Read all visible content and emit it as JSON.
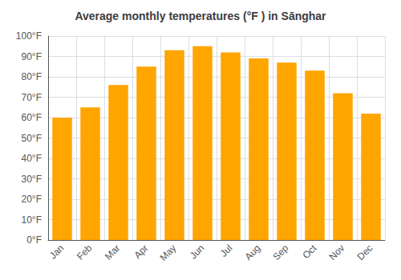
{
  "chart_data": {
    "type": "bar",
    "title": "Average monthly temperatures (°F ) in Sānghar",
    "categories": [
      "Jan",
      "Feb",
      "Mar",
      "Apr",
      "May",
      "Jun",
      "Jul",
      "Aug",
      "Sep",
      "Oct",
      "Nov",
      "Dec"
    ],
    "values": [
      60,
      65,
      76,
      85,
      93,
      95,
      92,
      89,
      87,
      83,
      72,
      62
    ],
    "color": "#FFA500",
    "ylim": [
      0,
      100
    ],
    "yticks": [
      {
        "value": 0,
        "label": "0°F"
      },
      {
        "value": 10,
        "label": "10°F"
      },
      {
        "value": 20,
        "label": "20°F"
      },
      {
        "value": 30,
        "label": "30°F"
      },
      {
        "value": 40,
        "label": "40°F"
      },
      {
        "value": 50,
        "label": "50°F"
      },
      {
        "value": 60,
        "label": "60°F"
      },
      {
        "value": 70,
        "label": "70°F"
      },
      {
        "value": 80,
        "label": "80°F"
      },
      {
        "value": 90,
        "label": "90°F"
      },
      {
        "value": 100,
        "label": "100°F"
      }
    ],
    "grid": true
  }
}
